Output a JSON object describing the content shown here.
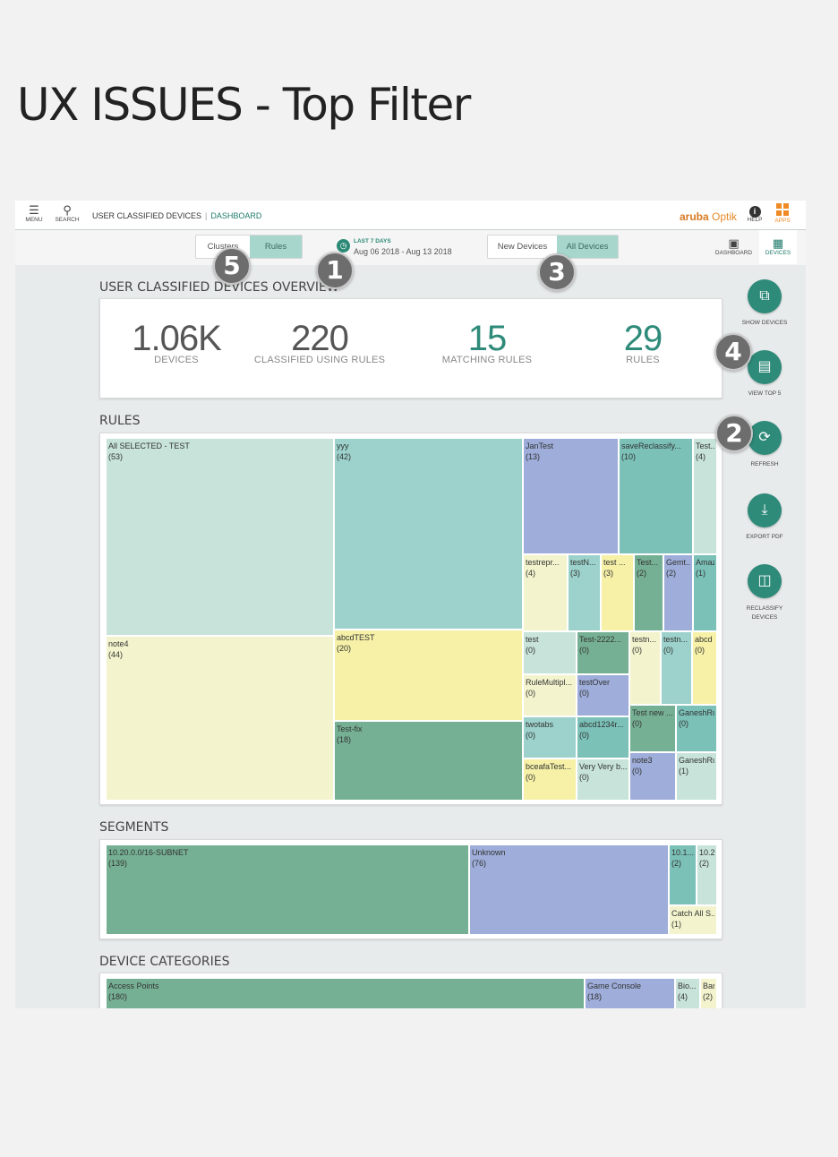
{
  "page_title": "UX ISSUES - Top Filter",
  "topbar": {
    "menu_label": "MENU",
    "search_label": "SEARCH",
    "breadcrumb_1": "USER CLASSIFIED DEVICES",
    "breadcrumb_2": "DASHBOARD",
    "brand_1": "aruba",
    "brand_2": "Optik",
    "help_label": "HELP",
    "apps_label": "APPS",
    "menu_icon": "hamburger-icon",
    "search_icon": "magnifier-icon",
    "help_icon": "info-icon",
    "apps_icon": "grid-icon"
  },
  "filters": {
    "toggle1": [
      "Clusters",
      "Rules"
    ],
    "toggle1_active": "Rules",
    "toggle2": [
      "New Devices",
      "All Devices"
    ],
    "toggle2_active": "All Devices",
    "date_label": "LAST 7 DAYS",
    "date_range": "Aug 06 2018 - Aug 13 2018"
  },
  "view_tabs": {
    "dashboard": "DASHBOARD",
    "devices": "DEVICES",
    "active": "DEVICES"
  },
  "overview": {
    "title": "USER CLASSIFIED DEVICES OVERVIEW",
    "kpis": [
      {
        "value": "1.06K",
        "label": "DEVICES"
      },
      {
        "value": "220",
        "label": "CLASSIFIED USING RULES"
      },
      {
        "value": "15",
        "label": "MATCHING RULES"
      },
      {
        "value": "29",
        "label": "RULES"
      }
    ]
  },
  "rules": {
    "title": "RULES",
    "tiles": [
      {
        "name": "All SELECTED - TEST",
        "count": "(53)"
      },
      {
        "name": "note4",
        "count": "(44)"
      },
      {
        "name": "yyy",
        "count": "(42)"
      },
      {
        "name": "abcdTEST",
        "count": "(20)"
      },
      {
        "name": "Test-fix",
        "count": "(18)"
      },
      {
        "name": "JanTest",
        "count": "(13)"
      },
      {
        "name": "saveReclassify...",
        "count": "(10)"
      },
      {
        "name": "Test...",
        "count": "(4)"
      },
      {
        "name": "testrepr...",
        "count": "(4)"
      },
      {
        "name": "testN...",
        "count": "(3)"
      },
      {
        "name": "test ...",
        "count": "(3)"
      },
      {
        "name": "Test...",
        "count": "(2)"
      },
      {
        "name": "Gemt...",
        "count": "(2)"
      },
      {
        "name": "Amaz",
        "count": "(1)"
      },
      {
        "name": "test",
        "count": "(0)"
      },
      {
        "name": "Test-2222...",
        "count": "(0)"
      },
      {
        "name": "testn...",
        "count": "(0)"
      },
      {
        "name": "testn...",
        "count": "(0)"
      },
      {
        "name": "abcd",
        "count": "(0)"
      },
      {
        "name": "RuleMultipl...",
        "count": "(0)"
      },
      {
        "name": "testOver",
        "count": "(0)"
      },
      {
        "name": "Test new ...",
        "count": "(0)"
      },
      {
        "name": "GaneshRu",
        "count": "(0)"
      },
      {
        "name": "twotabs",
        "count": "(0)"
      },
      {
        "name": "abcd1234r...",
        "count": "(0)"
      },
      {
        "name": "bceafaTest...",
        "count": "(0)"
      },
      {
        "name": "Very Very b...",
        "count": "(0)"
      },
      {
        "name": "note3",
        "count": "(0)"
      },
      {
        "name": "GaneshRu",
        "count": "(1)"
      }
    ]
  },
  "segments": {
    "title": "SEGMENTS",
    "tiles": [
      {
        "name": "10.20.0.0/16-SUBNET",
        "count": "(139)"
      },
      {
        "name": "Unknown",
        "count": "(76)"
      },
      {
        "name": "10.1...",
        "count": "(2)"
      },
      {
        "name": "10.2...",
        "count": "(2)"
      },
      {
        "name": "Catch All S...",
        "count": "(1)"
      }
    ]
  },
  "device_categories": {
    "title": "DEVICE CATEGORIES",
    "tiles": [
      {
        "name": "Access Points",
        "count": "(180)"
      },
      {
        "name": "Game Console",
        "count": "(18)"
      },
      {
        "name": "Bio...",
        "count": "(4)"
      },
      {
        "name": "Bar...",
        "count": "(2)"
      }
    ]
  },
  "side_actions": [
    {
      "label": "SHOW DEVICES",
      "icon": "external-link-icon"
    },
    {
      "label": "VIEW TOP 5",
      "icon": "bar-chart-icon"
    },
    {
      "label": "REFRESH",
      "icon": "refresh-icon"
    },
    {
      "label": "EXPORT PDF",
      "icon": "download-icon"
    },
    {
      "label": "RECLASSIFY DEVICES",
      "icon": "reclassify-icon"
    }
  ],
  "issue_badges": [
    "1",
    "2",
    "3",
    "4",
    "5"
  ],
  "colors": {
    "accent": "#2e8a79",
    "brand_orange": "#f08a24",
    "toggle_active": "#a7d6cd",
    "badge": "#6d6d6d"
  }
}
